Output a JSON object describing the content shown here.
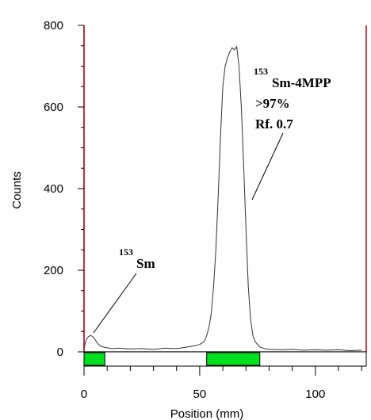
{
  "chart_data": {
    "type": "line",
    "xlabel": "Position (mm)",
    "ylabel": "Counts",
    "xlim": [
      0,
      122
    ],
    "ylim": [
      0,
      800
    ],
    "x_ticks": [
      "0",
      "50",
      "100"
    ],
    "y_ticks": [
      "0",
      "200",
      "400",
      "600",
      "800"
    ],
    "grid": false,
    "series": [
      {
        "color": "#333333",
        "x": [
          0,
          1,
          2,
          3,
          4,
          5,
          6,
          7,
          8,
          10,
          12,
          15,
          20,
          25,
          30,
          35,
          40,
          45,
          48,
          50,
          52,
          53,
          54,
          55,
          56,
          57,
          58,
          59,
          60,
          61,
          62,
          63,
          64,
          65,
          66,
          67,
          68,
          69,
          70,
          71,
          72,
          73,
          74,
          75,
          76,
          78,
          80,
          85,
          90,
          95,
          100,
          105,
          110,
          115,
          120
        ],
        "y": [
          10,
          30,
          38,
          40,
          36,
          28,
          20,
          15,
          12,
          10,
          8,
          9,
          7,
          8,
          6,
          9,
          8,
          12,
          15,
          18,
          25,
          40,
          60,
          95,
          160,
          250,
          380,
          530,
          650,
          700,
          720,
          735,
          745,
          740,
          748,
          700,
          600,
          460,
          300,
          160,
          80,
          40,
          25,
          18,
          12,
          8,
          6,
          5,
          6,
          4,
          5,
          4,
          5,
          3,
          4
        ]
      }
    ],
    "boundaries": [
      0,
      122
    ],
    "regions": [
      [
        0,
        9
      ],
      [
        53,
        76
      ]
    ],
    "annotations": [
      {
        "sup": "153",
        "lines": [
          "Sm"
        ]
      },
      {
        "sup": "153",
        "lines": [
          "Sm-4MPP",
          ">97%",
          "Rf. 0.7"
        ]
      }
    ]
  }
}
